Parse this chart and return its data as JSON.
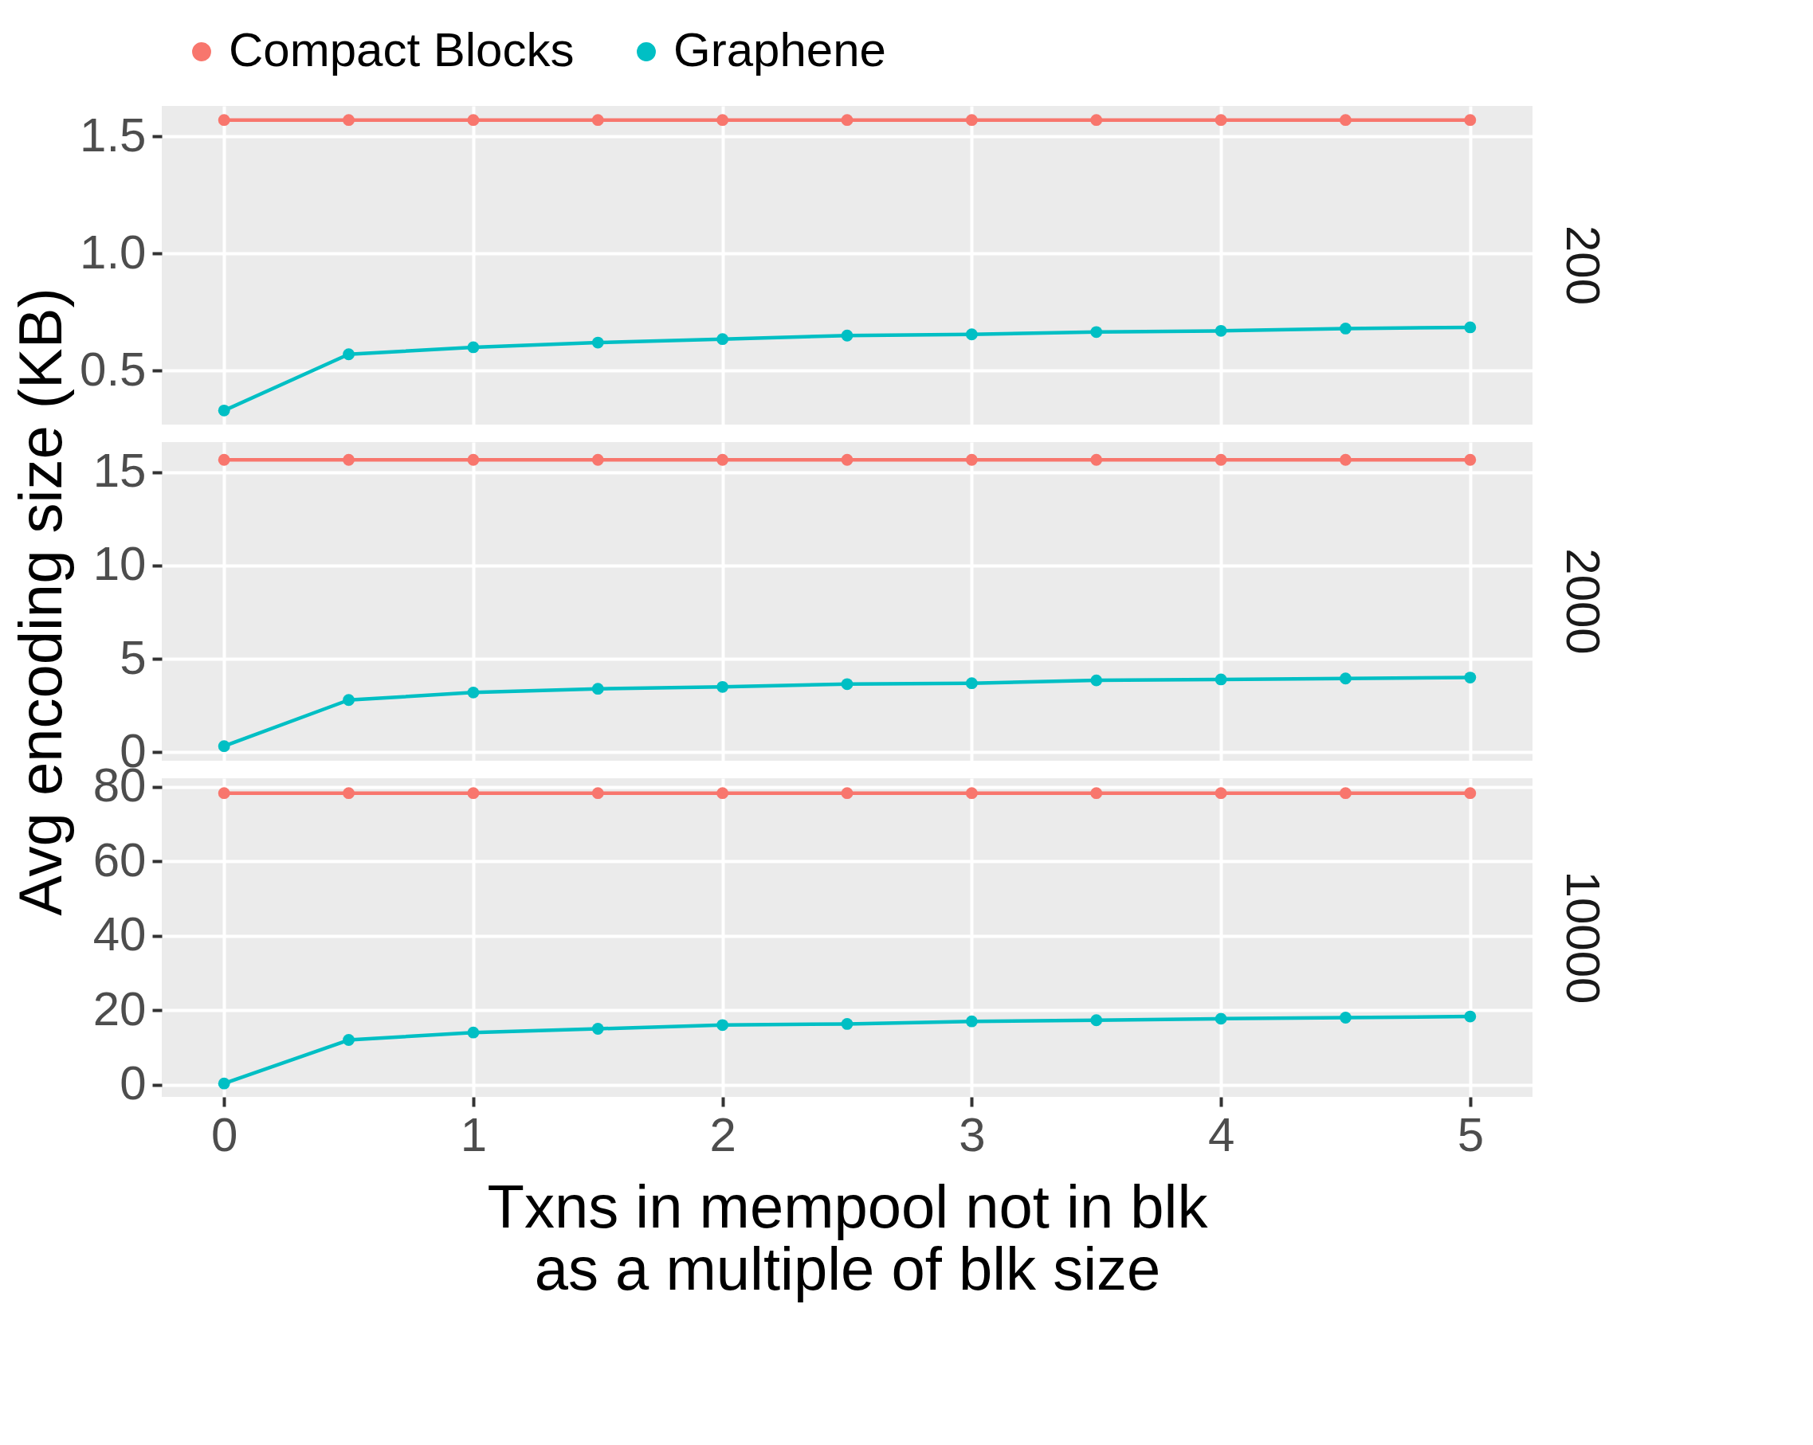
{
  "chart_data": [
    {
      "type": "line",
      "title": "200",
      "x": [
        0,
        0.5,
        1,
        1.5,
        2,
        2.5,
        3,
        3.5,
        4,
        4.5,
        5
      ],
      "xlim": [
        -0.25,
        5.25
      ],
      "xticks": [
        0,
        1,
        2,
        3,
        4,
        5
      ],
      "ylim": [
        0.27,
        1.63
      ],
      "yticks": [
        0.5,
        {
          "value": 1,
          "label": "1.0"
        },
        1.5
      ],
      "tick_labels": "y",
      "grid": true,
      "legend": "top",
      "marker": "circle",
      "series": [
        {
          "name": "Compact Blocks",
          "color": "#f8766d",
          "values": [
            1.57,
            1.57,
            1.57,
            1.57,
            1.57,
            1.57,
            1.57,
            1.57,
            1.57,
            1.57,
            1.57
          ]
        },
        {
          "name": "Graphene",
          "color": "#00bfc4",
          "values": [
            0.33,
            0.57,
            0.6,
            0.62,
            0.635,
            0.65,
            0.655,
            0.665,
            0.67,
            0.68,
            0.685
          ]
        }
      ]
    },
    {
      "type": "line",
      "title": "2000",
      "ylabel": "Avg encoding size (KB)",
      "x": [
        0,
        0.5,
        1,
        1.5,
        2,
        2.5,
        3,
        3.5,
        4,
        4.5,
        5
      ],
      "xlim": [
        -0.25,
        5.25
      ],
      "xticks": [
        0,
        1,
        2,
        3,
        4,
        5
      ],
      "ylim": [
        -0.45,
        16.6
      ],
      "yticks": [
        0,
        5,
        10,
        15
      ],
      "tick_labels": "y",
      "grid": true,
      "marker": "circle",
      "series": [
        {
          "color": "#f8766d",
          "values": [
            15.65,
            15.65,
            15.65,
            15.65,
            15.65,
            15.65,
            15.65,
            15.65,
            15.65,
            15.65,
            15.65
          ]
        },
        {
          "color": "#00bfc4",
          "values": [
            0.33,
            2.8,
            3.2,
            3.4,
            3.5,
            3.65,
            3.7,
            3.85,
            3.9,
            3.95,
            4.0
          ]
        }
      ]
    },
    {
      "type": "line",
      "title": "10000",
      "xlabel": "Txns in mempool not in blk\nas a multiple of blk size",
      "x": [
        0,
        0.5,
        1,
        1.5,
        2,
        2.5,
        3,
        3.5,
        4,
        4.5,
        5
      ],
      "xlim": [
        -0.25,
        5.25
      ],
      "xticks": [
        0,
        1,
        2,
        3,
        4,
        5
      ],
      "ylim": [
        -3.3,
        82.3
      ],
      "yticks": [
        0,
        20,
        40,
        60,
        80
      ],
      "grid": true,
      "marker": "circle",
      "series": [
        {
          "color": "#f8766d",
          "values": [
            78.3,
            78.3,
            78.3,
            78.3,
            78.3,
            78.3,
            78.3,
            78.3,
            78.3,
            78.3,
            78.3
          ]
        },
        {
          "color": "#00bfc4",
          "values": [
            0.3,
            12,
            14,
            15,
            16,
            16.3,
            17,
            17.3,
            17.7,
            18,
            18.3
          ]
        }
      ]
    }
  ]
}
